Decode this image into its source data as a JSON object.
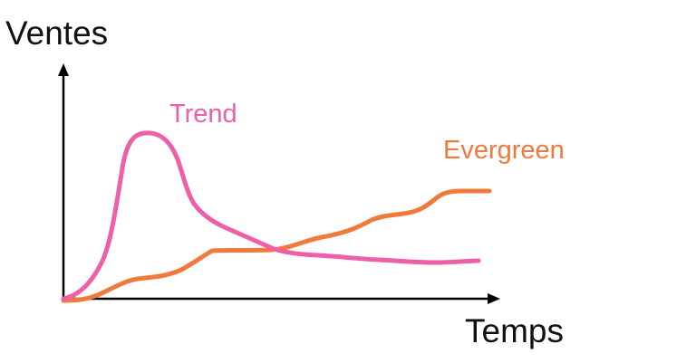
{
  "colors": {
    "axis": "#000000",
    "text": "#111111",
    "trend": "#ee5fa7",
    "evergreen": "#f07a3c"
  },
  "y_axis_label": "Ventes",
  "x_axis_label": "Temps",
  "series": [
    {
      "key": "trend",
      "label": "Trend",
      "description": "sharp early peak, then decline to a low plateau"
    },
    {
      "key": "evergreen",
      "label": "Evergreen",
      "description": "slow, steady rise over time"
    }
  ]
}
